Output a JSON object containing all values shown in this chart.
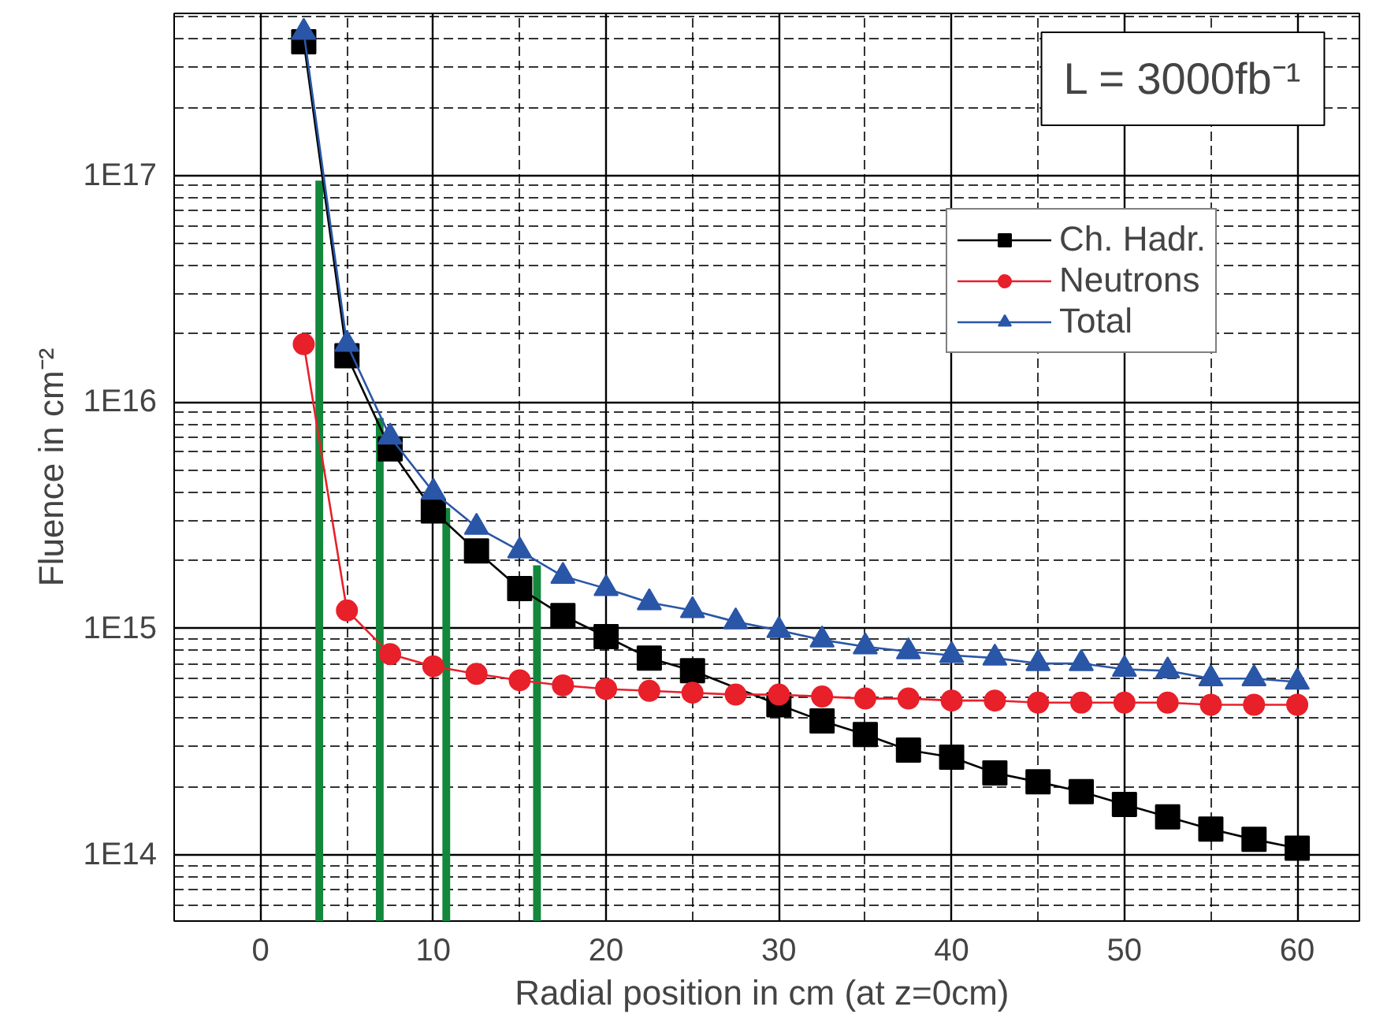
{
  "chart_data": {
    "type": "line",
    "xlabel": "Radial position in cm  (at z=0cm)",
    "ylabel": "Fluence in cm⁻²",
    "annotations": [
      "L = 3000fb⁻¹"
    ],
    "x": [
      2.5,
      5,
      7.5,
      10,
      12.5,
      15,
      17.5,
      20,
      22.5,
      25,
      27.5,
      30,
      32.5,
      35,
      37.5,
      40,
      42.5,
      45,
      47.5,
      50,
      52.5,
      55,
      57.5,
      60
    ],
    "series": [
      {
        "type": "bar",
        "color": "#13873c",
        "x": [
          3.4,
          6.9,
          10.75,
          16.0
        ],
        "values": [
          9.5e+16,
          8500000000000000.0,
          3400000000000000.0,
          1900000000000000.0
        ]
      },
      {
        "name": "Ch. Hadr.",
        "color": "#000000",
        "marker": "square",
        "values": [
          3.9e+17,
          1.6e+16,
          6200000000000000.0,
          3300000000000000.0,
          2200000000000000.0,
          1500000000000000.0,
          1140000000000000.0,
          920000000000000.0,
          740000000000000.0,
          650000000000000.0,
          null,
          460000000000000.0,
          390000000000000.0,
          340000000000000.0,
          290000000000000.0,
          270000000000000.0,
          230000000000000.0,
          210000000000000.0,
          190000000000000.0,
          167000000000000.0,
          147000000000000.0,
          130000000000000.0,
          117000000000000.0,
          107000000000000.0
        ]
      },
      {
        "name": "Neutrons",
        "color": "#e8202a",
        "marker": "circle",
        "values": [
          1.8e+16,
          1200000000000000.0,
          770000000000000.0,
          680000000000000.0,
          630000000000000.0,
          590000000000000.0,
          560000000000000.0,
          540000000000000.0,
          530000000000000.0,
          520000000000000.0,
          510000000000000.0,
          510000000000000.0,
          500000000000000.0,
          490000000000000.0,
          490000000000000.0,
          480000000000000.0,
          480000000000000.0,
          470000000000000.0,
          470000000000000.0,
          470000000000000.0,
          470000000000000.0,
          460000000000000.0,
          460000000000000.0,
          460000000000000.0
        ]
      },
      {
        "name": "Total",
        "color": "#2a56a8",
        "marker": "triangle",
        "values": [
          4.3e+17,
          1.8e+16,
          7000000000000000.0,
          4000000000000000.0,
          2800000000000000.0,
          2200000000000000.0,
          1700000000000000.0,
          1500000000000000.0,
          1300000000000000.0,
          1200000000000000.0,
          1070000000000000.0,
          980000000000000.0,
          890000000000000.0,
          830000000000000.0,
          790000000000000.0,
          760000000000000.0,
          740000000000000.0,
          700000000000000.0,
          700000000000000.0,
          660000000000000.0,
          650000000000000.0,
          600000000000000.0,
          600000000000000.0,
          580000000000000.0
        ]
      }
    ],
    "log": "y",
    "xlim": [
      -5,
      63.6
    ],
    "ylim": [
      51000000000000.0,
      5.2e+17
    ],
    "xticks": [
      0,
      10,
      20,
      30,
      40,
      50,
      60
    ],
    "yticks": [
      {
        "value": 100000000000000.0,
        "label": "1E14"
      },
      {
        "value": 1000000000000000.0,
        "label": "1E15"
      },
      {
        "value": 1e+16,
        "label": "1E16"
      },
      {
        "value": 1e+17,
        "label": "1E17"
      }
    ],
    "grid": true,
    "legend": "top right",
    "line_style": "solid"
  }
}
